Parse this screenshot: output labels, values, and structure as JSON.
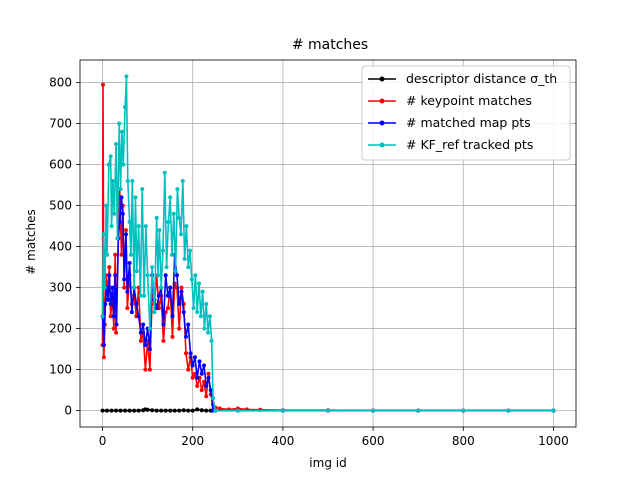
{
  "chart_data": {
    "type": "line",
    "title": "# matches",
    "xlabel": "img id",
    "ylabel": "# matches",
    "xlim": [
      -50,
      1050
    ],
    "ylim": [
      -40,
      855
    ],
    "xticks": [
      0,
      200,
      400,
      600,
      800,
      1000
    ],
    "xtick_labels": [
      "0",
      "200",
      "400",
      "600",
      "800",
      "1000"
    ],
    "yticks": [
      0,
      100,
      200,
      300,
      400,
      500,
      600,
      700,
      800
    ],
    "ytick_labels": [
      "0",
      "100",
      "200",
      "300",
      "400",
      "500",
      "600",
      "700",
      "800"
    ],
    "grid": true,
    "legend_position": "top-right",
    "series": [
      {
        "name": "descriptor distance σ_th",
        "color": "#000000",
        "points": [
          [
            0,
            0
          ],
          [
            10,
            0
          ],
          [
            20,
            0
          ],
          [
            30,
            0
          ],
          [
            40,
            0
          ],
          [
            50,
            0
          ],
          [
            60,
            0
          ],
          [
            70,
            0
          ],
          [
            80,
            0
          ],
          [
            90,
            1
          ],
          [
            95,
            3
          ],
          [
            100,
            2
          ],
          [
            110,
            1
          ],
          [
            120,
            0
          ],
          [
            130,
            0
          ],
          [
            140,
            0
          ],
          [
            150,
            0
          ],
          [
            160,
            0
          ],
          [
            170,
            0
          ],
          [
            180,
            1
          ],
          [
            190,
            0
          ],
          [
            200,
            0
          ],
          [
            210,
            3
          ],
          [
            220,
            1
          ],
          [
            230,
            0
          ],
          [
            240,
            0
          ],
          [
            250,
            0
          ],
          [
            300,
            0
          ],
          [
            400,
            0
          ],
          [
            500,
            0
          ],
          [
            600,
            0
          ],
          [
            700,
            0
          ],
          [
            800,
            0
          ],
          [
            900,
            0
          ],
          [
            1000,
            0
          ]
        ]
      },
      {
        "name": "# keypoint matches",
        "color": "#ff0000",
        "points": [
          [
            0,
            160
          ],
          [
            1,
            795
          ],
          [
            3,
            130
          ],
          [
            5,
            210
          ],
          [
            8,
            330
          ],
          [
            12,
            290
          ],
          [
            15,
            350
          ],
          [
            18,
            230
          ],
          [
            22,
            280
          ],
          [
            25,
            200
          ],
          [
            28,
            380
          ],
          [
            30,
            190
          ],
          [
            35,
            420
          ],
          [
            38,
            540
          ],
          [
            42,
            380
          ],
          [
            45,
            500
          ],
          [
            48,
            300
          ],
          [
            52,
            440
          ],
          [
            55,
            250
          ],
          [
            60,
            330
          ],
          [
            65,
            260
          ],
          [
            70,
            280
          ],
          [
            75,
            230
          ],
          [
            80,
            300
          ],
          [
            85,
            170
          ],
          [
            90,
            190
          ],
          [
            95,
            100
          ],
          [
            100,
            170
          ],
          [
            105,
            100
          ],
          [
            110,
            280
          ],
          [
            115,
            260
          ],
          [
            120,
            330
          ],
          [
            125,
            250
          ],
          [
            130,
            280
          ],
          [
            135,
            170
          ],
          [
            140,
            240
          ],
          [
            145,
            250
          ],
          [
            150,
            300
          ],
          [
            155,
            180
          ],
          [
            160,
            310
          ],
          [
            165,
            300
          ],
          [
            170,
            200
          ],
          [
            175,
            300
          ],
          [
            180,
            260
          ],
          [
            185,
            140
          ],
          [
            190,
            100
          ],
          [
            195,
            130
          ],
          [
            200,
            80
          ],
          [
            205,
            90
          ],
          [
            210,
            60
          ],
          [
            215,
            80
          ],
          [
            220,
            50
          ],
          [
            225,
            70
          ],
          [
            230,
            35
          ],
          [
            235,
            90
          ],
          [
            240,
            40
          ],
          [
            245,
            15
          ],
          [
            250,
            8
          ],
          [
            260,
            5
          ],
          [
            280,
            3
          ],
          [
            300,
            5
          ],
          [
            320,
            3
          ],
          [
            350,
            2
          ],
          [
            400,
            1
          ],
          [
            500,
            1
          ],
          [
            600,
            0
          ],
          [
            700,
            0
          ],
          [
            800,
            0
          ],
          [
            900,
            0
          ],
          [
            1000,
            0
          ]
        ]
      },
      {
        "name": "# matched map pts",
        "color": "#0000ff",
        "points": [
          [
            0,
            230
          ],
          [
            3,
            160
          ],
          [
            6,
            260
          ],
          [
            9,
            300
          ],
          [
            12,
            270
          ],
          [
            15,
            330
          ],
          [
            18,
            260
          ],
          [
            22,
            300
          ],
          [
            25,
            230
          ],
          [
            28,
            330
          ],
          [
            31,
            210
          ],
          [
            35,
            420
          ],
          [
            38,
            460
          ],
          [
            42,
            520
          ],
          [
            45,
            480
          ],
          [
            48,
            320
          ],
          [
            52,
            430
          ],
          [
            55,
            290
          ],
          [
            60,
            360
          ],
          [
            65,
            240
          ],
          [
            70,
            300
          ],
          [
            75,
            260
          ],
          [
            80,
            230
          ],
          [
            85,
            190
          ],
          [
            90,
            210
          ],
          [
            95,
            160
          ],
          [
            100,
            200
          ],
          [
            105,
            150
          ],
          [
            110,
            330
          ],
          [
            115,
            270
          ],
          [
            120,
            250
          ],
          [
            125,
            280
          ],
          [
            130,
            300
          ],
          [
            135,
            210
          ],
          [
            140,
            330
          ],
          [
            145,
            280
          ],
          [
            150,
            300
          ],
          [
            155,
            230
          ],
          [
            160,
            380
          ],
          [
            165,
            330
          ],
          [
            170,
            260
          ],
          [
            175,
            290
          ],
          [
            180,
            240
          ],
          [
            185,
            180
          ],
          [
            190,
            210
          ],
          [
            195,
            140
          ],
          [
            200,
            110
          ],
          [
            205,
            130
          ],
          [
            210,
            80
          ],
          [
            215,
            120
          ],
          [
            220,
            90
          ],
          [
            225,
            110
          ],
          [
            230,
            60
          ],
          [
            235,
            80
          ],
          [
            240,
            50
          ],
          [
            245,
            0
          ],
          [
            250,
            0
          ],
          [
            300,
            0
          ],
          [
            400,
            0
          ],
          [
            500,
            0
          ],
          [
            600,
            0
          ],
          [
            700,
            0
          ],
          [
            800,
            0
          ],
          [
            900,
            0
          ],
          [
            1000,
            0
          ]
        ]
      },
      {
        "name": "# KF_ref tracked pts",
        "color": "#00bfbf",
        "points": [
          [
            0,
            230
          ],
          [
            2,
            430
          ],
          [
            5,
            300
          ],
          [
            8,
            500
          ],
          [
            10,
            380
          ],
          [
            14,
            600
          ],
          [
            18,
            620
          ],
          [
            20,
            450
          ],
          [
            23,
            560
          ],
          [
            26,
            480
          ],
          [
            30,
            650
          ],
          [
            33,
            420
          ],
          [
            37,
            700
          ],
          [
            40,
            540
          ],
          [
            43,
            680
          ],
          [
            46,
            600
          ],
          [
            50,
            740
          ],
          [
            53,
            815
          ],
          [
            56,
            560
          ],
          [
            60,
            460
          ],
          [
            63,
            380
          ],
          [
            66,
            560
          ],
          [
            70,
            300
          ],
          [
            73,
            520
          ],
          [
            76,
            340
          ],
          [
            80,
            450
          ],
          [
            84,
            280
          ],
          [
            88,
            540
          ],
          [
            92,
            280
          ],
          [
            96,
            450
          ],
          [
            100,
            330
          ],
          [
            105,
            200
          ],
          [
            110,
            350
          ],
          [
            115,
            240
          ],
          [
            120,
            470
          ],
          [
            123,
            330
          ],
          [
            126,
            440
          ],
          [
            130,
            300
          ],
          [
            134,
            390
          ],
          [
            138,
            580
          ],
          [
            142,
            350
          ],
          [
            146,
            460
          ],
          [
            150,
            520
          ],
          [
            154,
            380
          ],
          [
            158,
            480
          ],
          [
            162,
            340
          ],
          [
            166,
            540
          ],
          [
            170,
            470
          ],
          [
            174,
            430
          ],
          [
            178,
            560
          ],
          [
            182,
            370
          ],
          [
            186,
            450
          ],
          [
            190,
            350
          ],
          [
            194,
            390
          ],
          [
            198,
            320
          ],
          [
            202,
            250
          ],
          [
            206,
            330
          ],
          [
            210,
            240
          ],
          [
            214,
            310
          ],
          [
            218,
            230
          ],
          [
            222,
            290
          ],
          [
            226,
            200
          ],
          [
            230,
            260
          ],
          [
            234,
            190
          ],
          [
            238,
            230
          ],
          [
            242,
            170
          ],
          [
            245,
            30
          ],
          [
            250,
            0
          ],
          [
            300,
            0
          ],
          [
            400,
            0
          ],
          [
            500,
            0
          ],
          [
            600,
            0
          ],
          [
            700,
            0
          ],
          [
            800,
            0
          ],
          [
            900,
            0
          ],
          [
            1000,
            0
          ]
        ]
      }
    ]
  }
}
